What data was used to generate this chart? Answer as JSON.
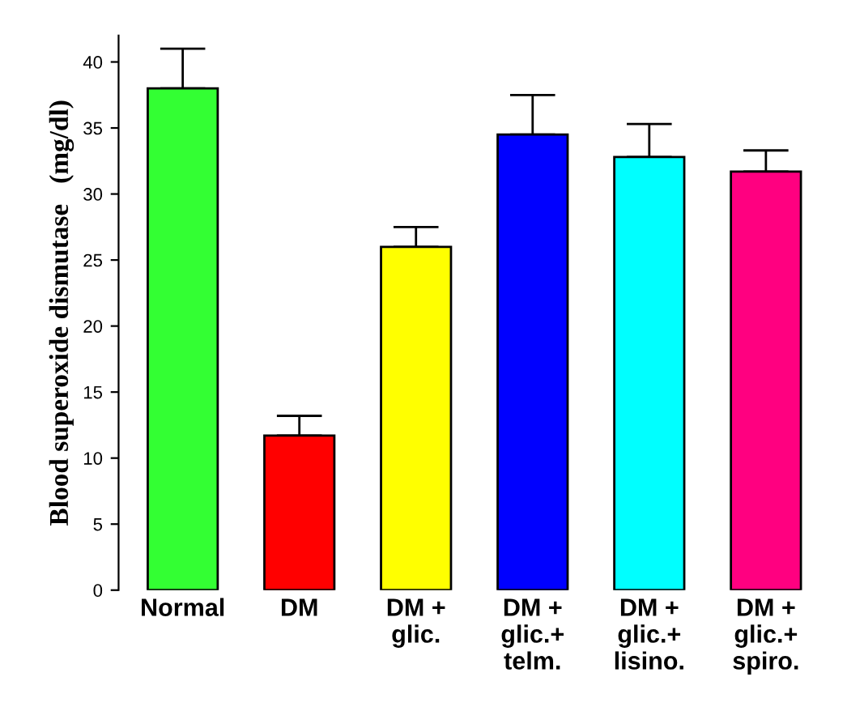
{
  "chart_data": {
    "type": "bar",
    "ylabel": "Blood superoxide dismutase   (mg/dl)",
    "categories": [
      "Normal",
      "DM",
      "DM +\nglic.",
      "DM +\nglic.+\ntelm.",
      "DM +\nglic.+\nlisino.",
      "DM +\nglic.+\nspiro."
    ],
    "values": [
      38,
      11.7,
      26,
      34.5,
      32.8,
      31.7
    ],
    "colors": [
      "#33ff33",
      "#ff0000",
      "#ffff00",
      "#0000ff",
      "#00ffff",
      "#ff0080"
    ],
    "errors": [
      [
        38,
        41
      ],
      [
        11.7,
        13.2
      ],
      [
        26,
        27.5
      ],
      [
        34.5,
        37.5
      ],
      [
        32.8,
        35.3
      ],
      [
        31.7,
        33.3
      ]
    ],
    "ylim": [
      0,
      42
    ],
    "yticks": [
      0,
      5,
      10,
      15,
      20,
      25,
      30,
      35,
      40
    ],
    "grid": false,
    "legend": false
  }
}
